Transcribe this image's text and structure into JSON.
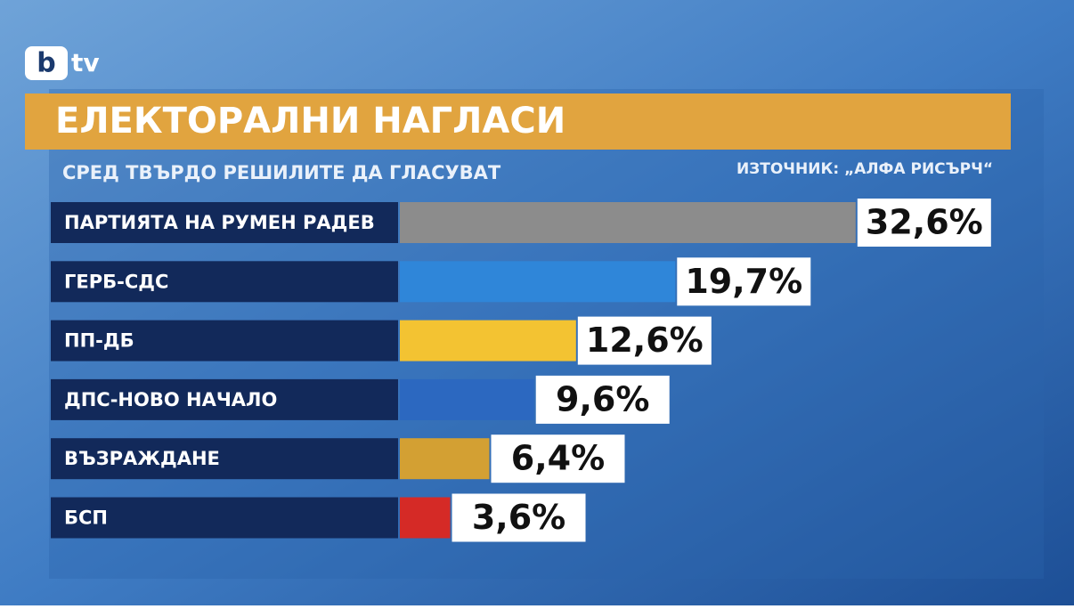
{
  "logo": {
    "mark": "b",
    "text": "tv"
  },
  "chart_data": {
    "type": "bar",
    "title": "ЕЛЕКТОРАЛНИ НАГЛАСИ",
    "subtitle": "СРЕД ТВЪРДО РЕШИЛИТЕ ДА ГЛАСУВАТ",
    "source": "ИЗТОЧНИК: „АЛФА РИСЪРЧ“",
    "categories": [
      "ПАРТИЯТА НА РУМЕН РАДЕВ",
      "ГЕРБ-СДС",
      "ПП-ДБ",
      "ДПС-НОВО НАЧАЛО",
      "ВЪЗРАЖДАНЕ",
      "БСП"
    ],
    "values": [
      32.6,
      19.7,
      12.6,
      9.6,
      6.4,
      3.6
    ],
    "value_labels": [
      "32,6%",
      "19,7%",
      "12,6%",
      "9,6%",
      "6,4%",
      "3,6%"
    ],
    "colors": [
      "#8c8c8c",
      "#2f86d9",
      "#f3c332",
      "#2c68c0",
      "#d3a033",
      "#d52a26"
    ]
  }
}
